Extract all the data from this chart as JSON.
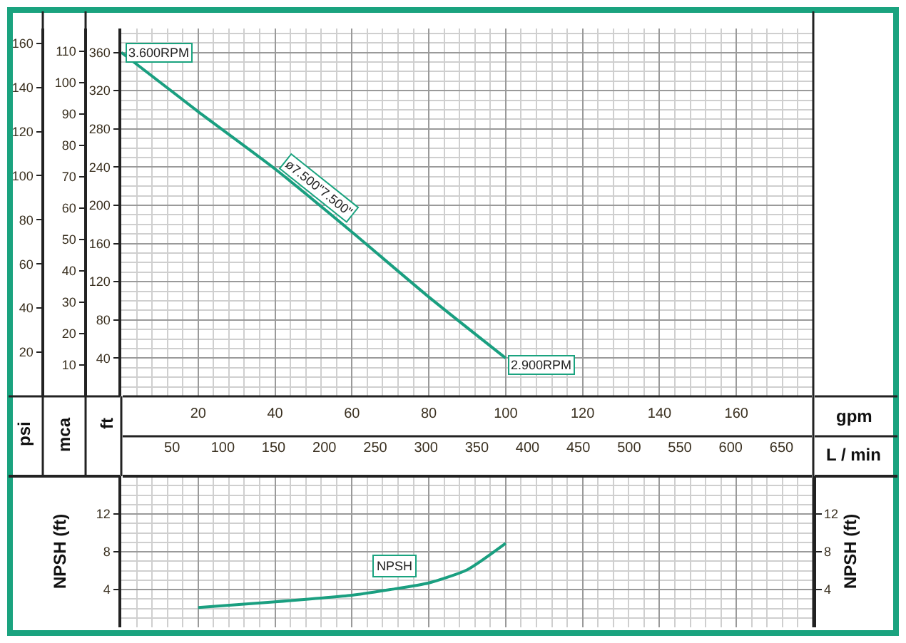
{
  "chart_data": [
    {
      "type": "line",
      "xlabel": "gpm",
      "x2label": "L / min",
      "ylabel": "ft",
      "y2label": "mca",
      "y3label": "psi",
      "series": [
        {
          "color": "#1a9f80",
          "x": [
            0,
            20,
            40,
            60,
            80,
            100
          ],
          "values": [
            360,
            298,
            238,
            172,
            104,
            40
          ]
        }
      ],
      "xlim": [
        0,
        180
      ],
      "xticks": [
        20,
        40,
        60,
        80,
        100,
        120,
        140,
        160
      ],
      "x2lim": [
        0,
        681.3
      ],
      "x2ticks": [
        50,
        100,
        150,
        200,
        250,
        300,
        350,
        400,
        450,
        500,
        550,
        600,
        650
      ],
      "ylim": [
        0,
        385
      ],
      "yticks": [
        40,
        80,
        120,
        160,
        200,
        240,
        280,
        320,
        360
      ],
      "y2lim": [
        0,
        117.3
      ],
      "y2ticks": [
        10,
        20,
        30,
        40,
        50,
        60,
        70,
        80,
        90,
        100,
        110
      ],
      "y3lim": [
        0,
        166.7
      ],
      "y3ticks": [
        20,
        40,
        60,
        80,
        100,
        120,
        140,
        160
      ],
      "grid": true,
      "annotations": [
        {
          "text": "3.600RPM",
          "x": 0,
          "y": 360
        },
        "ø7.500\"7.500\"",
        {
          "text": "2.900RPM",
          "x": 100,
          "y": 40
        }
      ]
    },
    {
      "type": "line",
      "ylabel": "NPSH (ft)",
      "y2label": "NPSH (ft)",
      "series": [
        {
          "color": "#1a9f80",
          "x": [
            20,
            40,
            60,
            70,
            80,
            90,
            100
          ],
          "values": [
            2.1,
            2.7,
            3.4,
            4.0,
            4.7,
            6.1,
            8.9
          ]
        }
      ],
      "xlim": [
        0,
        180
      ],
      "xticks": [
        20,
        40,
        60,
        80,
        100,
        120,
        140,
        160
      ],
      "ylim": [
        0,
        16
      ],
      "yticks": [
        4,
        8,
        12
      ],
      "y2lim": [
        0,
        16
      ],
      "y2ticks": [
        4,
        8,
        12
      ],
      "tick_labels": "y",
      "grid": true,
      "annotations": [
        {
          "text": "NPSH",
          "x": 71,
          "y": 6.5
        }
      ]
    }
  ]
}
